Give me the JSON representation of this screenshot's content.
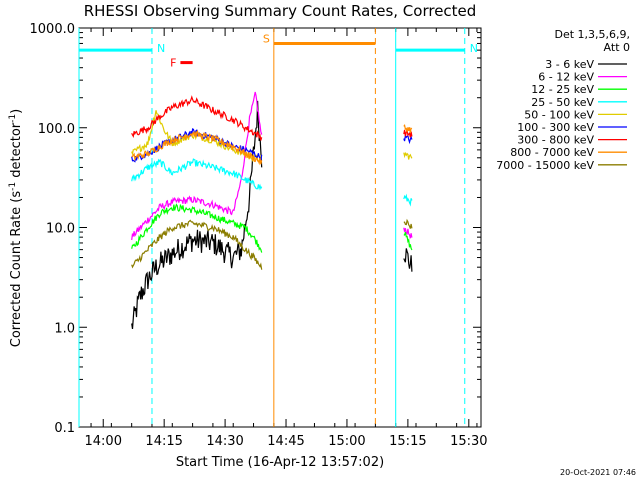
{
  "chart_data": {
    "type": "line",
    "title": "RHESSI Observing Summary Count Rates, Corrected",
    "xlabel": "Start Time (16-Apr-12 13:57:02)",
    "ylabel": "Corrected Count Rate (s",
    "ylabel_sup1": "-1",
    "ylabel_mid": " detector",
    "ylabel_sup2": "-1",
    "ylabel_end": ")",
    "yscale": "log",
    "xlim": [
      "13:57:02",
      "15:36:00"
    ],
    "ylim": [
      0.1,
      1000
    ],
    "x_ticks": [
      {
        "t": 843,
        "label": "14:00"
      },
      {
        "t": 858,
        "label": "14:15"
      },
      {
        "t": 873,
        "label": "14:30"
      },
      {
        "t": 888,
        "label": "14:45"
      },
      {
        "t": 903,
        "label": "15:00"
      },
      {
        "t": 918,
        "label": "15:15"
      },
      {
        "t": 933,
        "label": "15:30"
      }
    ],
    "y_ticks": [
      {
        "v": 0.1,
        "label": "0.1"
      },
      {
        "v": 1,
        "label": "1.0"
      },
      {
        "v": 10,
        "label": "10.0"
      },
      {
        "v": 100,
        "label": "100.0"
      },
      {
        "v": 1000,
        "label": "1000.0"
      }
    ],
    "legend": {
      "header1": "Det 1,3,5,6,9,",
      "header2": "Att 0",
      "placement": "right"
    },
    "series": [
      {
        "name": "3 - 6 keV",
        "color": "#000000",
        "x": [
          "14:10:00",
          "14:12:00",
          "14:14:00",
          "14:16:00",
          "14:20:00",
          "14:25:00",
          "14:30:00",
          "14:35:00",
          "14:37:00",
          "14:39:00",
          "14:41:00",
          "14:42:00",
          "15:17:00",
          "15:19:00"
        ],
        "y": [
          1.0,
          2.0,
          3.0,
          4.0,
          5.5,
          7.5,
          7.0,
          5.0,
          6.0,
          20.0,
          150.0,
          50.0,
          6.0,
          4.0
        ]
      },
      {
        "name": "6 - 12 keV",
        "color": "#ff00ff",
        "x": [
          "14:10:00",
          "14:14:00",
          "14:17:00",
          "14:20:00",
          "14:25:00",
          "14:30:00",
          "14:35:00",
          "14:37:00",
          "14:39:00",
          "14:40:30",
          "14:42:00",
          "15:17:00",
          "15:19:00"
        ],
        "y": [
          8.0,
          12.0,
          16.0,
          18.0,
          19.0,
          17.0,
          14.0,
          30.0,
          120.0,
          220.0,
          80.0,
          10.0,
          8.0
        ]
      },
      {
        "name": "12 - 25 keV",
        "color": "#00ff00",
        "x": [
          "14:10:00",
          "14:14:00",
          "14:17:00",
          "14:20:00",
          "14:25:00",
          "14:30:00",
          "14:35:00",
          "14:38:00",
          "14:40:00",
          "14:42:00",
          "15:17:00",
          "15:19:00"
        ],
        "y": [
          6.0,
          10.0,
          14.0,
          16.0,
          15.0,
          13.0,
          11.0,
          10.0,
          8.0,
          6.0,
          9.0,
          6.0
        ]
      },
      {
        "name": "25 - 50 keV",
        "color": "#00ffff",
        "x": [
          "14:10:00",
          "14:14:00",
          "14:17:00",
          "14:20:00",
          "14:25:00",
          "14:30:00",
          "14:35:00",
          "14:38:00",
          "14:40:00",
          "14:42:00",
          "15:17:00",
          "15:19:00"
        ],
        "y": [
          30.0,
          40.0,
          45.0,
          35.0,
          45.0,
          40.0,
          35.0,
          30.0,
          27.0,
          25.0,
          20.0,
          18.0
        ]
      },
      {
        "name": "50 - 100 keV",
        "color": "#e0cc00",
        "x": [
          "14:10:00",
          "14:14:00",
          "14:16:00",
          "14:18:00",
          "14:20:00",
          "14:25:00",
          "14:30:00",
          "14:35:00",
          "14:38:00",
          "14:40:00",
          "14:42:00",
          "15:17:00",
          "15:19:00"
        ],
        "y": [
          55.0,
          70.0,
          150.0,
          95.0,
          70.0,
          85.0,
          75.0,
          60.0,
          55.0,
          50.0,
          48.0,
          55.0,
          50.0
        ]
      },
      {
        "name": "100 - 300 keV",
        "color": "#0000ff",
        "x": [
          "14:10:00",
          "14:14:00",
          "14:17:00",
          "14:20:00",
          "14:25:00",
          "14:30:00",
          "14:35:00",
          "14:38:00",
          "14:40:00",
          "14:42:00",
          "15:17:00",
          "15:19:00"
        ],
        "y": [
          48.0,
          55.0,
          65.0,
          75.0,
          90.0,
          80.0,
          65.0,
          60.0,
          55.0,
          50.0,
          80.0,
          75.0
        ]
      },
      {
        "name": "300 - 800 keV",
        "color": "#ff0000",
        "x": [
          "14:10:00",
          "14:14:00",
          "14:17:00",
          "14:20:00",
          "14:25:00",
          "14:30:00",
          "14:35:00",
          "14:38:00",
          "14:40:00",
          "14:42:00",
          "15:17:00",
          "15:19:00"
        ],
        "y": [
          85.0,
          100.0,
          130.0,
          160.0,
          190.0,
          150.0,
          120.0,
          100.0,
          90.0,
          80.0,
          90.0,
          85.0
        ]
      },
      {
        "name": "800 - 7000 keV",
        "color": "#ff8c00",
        "x": [
          "14:10:00",
          "14:14:00",
          "14:17:00",
          "14:20:00",
          "14:25:00",
          "14:30:00",
          "14:35:00",
          "14:38:00",
          "14:40:00",
          "14:42:00",
          "15:17:00",
          "15:19:00"
        ],
        "y": [
          50.0,
          55.0,
          65.0,
          75.0,
          88.0,
          78.0,
          65.0,
          55.0,
          50.0,
          45.0,
          100.0,
          95.0
        ]
      },
      {
        "name": "7000 - 15000 keV",
        "color": "#8b7d00",
        "x": [
          "14:10:00",
          "14:14:00",
          "14:17:00",
          "14:20:00",
          "14:25:00",
          "14:30:00",
          "14:35:00",
          "14:38:00",
          "14:40:00",
          "14:42:00",
          "15:17:00",
          "15:19:00"
        ],
        "y": [
          4.0,
          6.0,
          8.0,
          10.0,
          11.0,
          10.0,
          8.0,
          6.0,
          5.0,
          4.0,
          12.0,
          10.0
        ]
      }
    ],
    "annotations": [
      {
        "label": "N",
        "color": "#00ffff",
        "x": [
          "13:57:02",
          "14:15:00"
        ],
        "y": 600
      },
      {
        "label": "N",
        "color": "#00ffff",
        "x": [
          "15:15:00",
          "15:32:00"
        ],
        "y": 600
      },
      {
        "label": "S",
        "color": "#ff8c00",
        "x": [
          "14:45:00",
          "15:10:00"
        ],
        "y": 700
      },
      {
        "label": "F",
        "color": "#ff0000",
        "x": [
          "14:22:00",
          "14:25:00"
        ],
        "y": 450
      }
    ],
    "vertical_markers": [
      {
        "t": "13:57:02",
        "color": "#00ffff",
        "style": "solid"
      },
      {
        "t": "14:15:00",
        "color": "#00ffff",
        "style": "dashed"
      },
      {
        "t": "14:45:00",
        "color": "#ff8c00",
        "style": "solid"
      },
      {
        "t": "15:10:00",
        "color": "#ff8c00",
        "style": "dashed"
      },
      {
        "t": "15:15:00",
        "color": "#00ffff",
        "style": "solid"
      },
      {
        "t": "15:32:00",
        "color": "#00ffff",
        "style": "dashed"
      }
    ]
  },
  "footer": {
    "timestamp": "20-Oct-2021 07:46"
  }
}
